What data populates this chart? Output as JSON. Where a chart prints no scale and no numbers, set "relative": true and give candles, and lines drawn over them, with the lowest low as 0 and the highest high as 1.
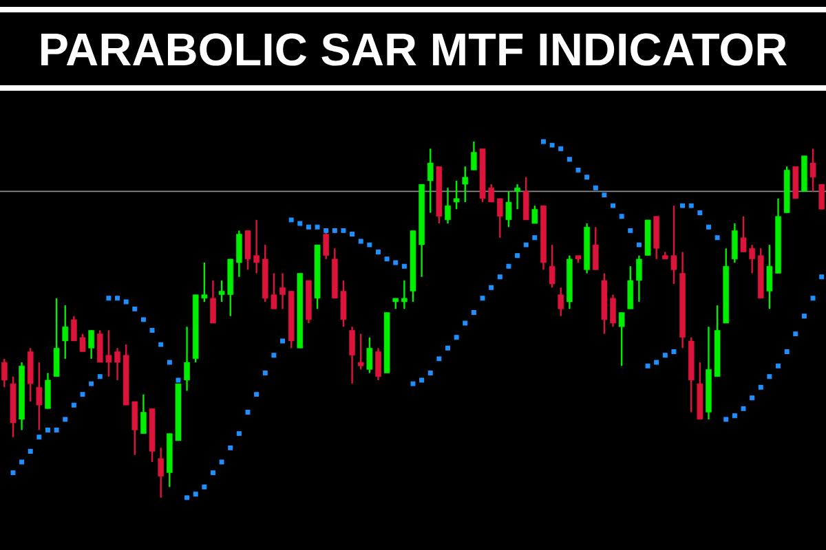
{
  "chart_data": {
    "type": "candlestick",
    "title": "PARABOLIC SAR MTF INDICATOR",
    "relative": true,
    "categories": [
      null,
      null,
      null,
      null,
      null,
      null,
      null,
      null,
      null,
      null,
      null,
      null,
      null,
      null,
      null,
      null,
      null,
      null,
      null,
      null,
      null,
      null,
      null,
      null,
      null,
      null,
      null,
      null,
      null,
      null,
      null,
      null,
      null,
      null,
      null,
      null,
      null,
      null,
      null,
      null,
      null,
      null,
      null,
      null,
      null,
      null,
      null,
      null,
      null,
      null,
      null,
      null,
      null,
      null,
      null,
      null,
      null,
      null,
      null,
      null,
      null,
      null,
      null,
      null,
      null,
      null,
      null,
      null,
      null,
      null,
      null,
      null,
      null,
      null,
      null,
      null,
      null,
      null,
      null,
      null,
      null,
      null,
      null,
      null,
      null,
      null,
      null,
      null,
      null,
      null,
      null,
      null,
      null,
      null,
      null
    ],
    "ohlc": [
      [
        0.38,
        0.39,
        0.31,
        0.33
      ],
      [
        0.32,
        0.34,
        0.17,
        0.21
      ],
      [
        0.22,
        0.38,
        0.19,
        0.37
      ],
      [
        0.41,
        0.42,
        0.27,
        0.32
      ],
      [
        0.31,
        0.38,
        0.19,
        0.26
      ],
      [
        0.25,
        0.35,
        0.25,
        0.33
      ],
      [
        0.34,
        0.56,
        0.34,
        0.42
      ],
      [
        0.44,
        0.54,
        0.39,
        0.48
      ],
      [
        0.5,
        0.51,
        0.44,
        0.44
      ],
      [
        0.45,
        0.46,
        0.41,
        0.41
      ],
      [
        0.42,
        0.47,
        0.39,
        0.47
      ],
      [
        0.46,
        0.47,
        0.38,
        0.38
      ],
      [
        0.4,
        0.47,
        0.34,
        0.38
      ],
      [
        0.41,
        0.42,
        0.33,
        0.38
      ],
      [
        0.4,
        0.43,
        0.26,
        0.26
      ],
      [
        0.27,
        0.27,
        0.12,
        0.19
      ],
      [
        0.18,
        0.29,
        0.18,
        0.24
      ],
      [
        0.25,
        0.25,
        0.1,
        0.13
      ],
      [
        0.11,
        0.14,
        0,
        0.06
      ],
      [
        0.07,
        0.18,
        0.03,
        0.18
      ],
      [
        0.16,
        0.32,
        0.16,
        0.32
      ],
      [
        0.33,
        0.48,
        0.3,
        0.38
      ],
      [
        0.39,
        0.57,
        0.38,
        0.57
      ],
      [
        0.56,
        0.66,
        0.55,
        0.57
      ],
      [
        0.56,
        0.61,
        0.49,
        0.49
      ],
      [
        0.57,
        0.61,
        0.55,
        0.58
      ],
      [
        0.57,
        0.67,
        0.51,
        0.67
      ],
      [
        0.66,
        0.75,
        0.62,
        0.74
      ],
      [
        0.75,
        0.75,
        0.64,
        0.67
      ],
      [
        0.68,
        0.78,
        0.63,
        0.66
      ],
      [
        0.67,
        0.71,
        0.55,
        0.56
      ],
      [
        0.57,
        0.63,
        0.53,
        0.53
      ],
      [
        0.59,
        0.63,
        0.53,
        0.57
      ],
      [
        0.58,
        0.58,
        0.42,
        0.44
      ],
      [
        0.42,
        0.63,
        0.42,
        0.63
      ],
      [
        0.61,
        0.61,
        0.49,
        0.5
      ],
      [
        0.56,
        0.71,
        0.53,
        0.71
      ],
      [
        0.74,
        0.75,
        0.67,
        0.68
      ],
      [
        0.67,
        0.7,
        0.56,
        0.56
      ],
      [
        0.58,
        0.61,
        0.48,
        0.5
      ],
      [
        0.47,
        0.48,
        0.32,
        0.4
      ],
      [
        0.38,
        0.46,
        0.36,
        0.37
      ],
      [
        0.36,
        0.45,
        0.35,
        0.42
      ],
      [
        0.41,
        0.42,
        0.33,
        0.34
      ],
      [
        0.35,
        0.52,
        0.35,
        0.52
      ],
      [
        0.55,
        0.56,
        0.53,
        0.56
      ],
      [
        0.55,
        0.61,
        0.53,
        0.56
      ],
      [
        0.58,
        0.75,
        0.55,
        0.75
      ],
      [
        0.71,
        0.88,
        0.62,
        0.88
      ],
      [
        0.89,
        0.98,
        0.8,
        0.94
      ],
      [
        0.93,
        0.93,
        0.77,
        0.79
      ],
      [
        0.78,
        0.87,
        0.77,
        0.82
      ],
      [
        0.83,
        0.89,
        0.81,
        0.84
      ],
      [
        0.88,
        0.93,
        0.83,
        0.9
      ],
      [
        0.92,
        1,
        0.92,
        0.97
      ],
      [
        0.98,
        0.98,
        0.83,
        0.84
      ],
      [
        0.87,
        0.88,
        0.83,
        0.83
      ],
      [
        0.84,
        0.84,
        0.73,
        0.79
      ],
      [
        0.78,
        0.86,
        0.76,
        0.83
      ],
      [
        0.86,
        0.88,
        0.81,
        0.87
      ],
      [
        0.86,
        0.9,
        0.78,
        0.78
      ],
      [
        0.77,
        0.82,
        0.77,
        0.81
      ],
      [
        0.82,
        0.82,
        0.64,
        0.66
      ],
      [
        0.65,
        0.71,
        0.59,
        0.6
      ],
      [
        0.57,
        0.59,
        0.51,
        0.53
      ],
      [
        0.55,
        0.68,
        0.53,
        0.67
      ],
      [
        0.68,
        0.68,
        0.66,
        0.67
      ],
      [
        0.64,
        0.77,
        0.63,
        0.76
      ],
      [
        0.71,
        0.76,
        0.64,
        0.64
      ],
      [
        0.61,
        0.63,
        0.46,
        0.5
      ],
      [
        0.56,
        0.57,
        0.48,
        0.49
      ],
      [
        0.48,
        0.52,
        0.37,
        0.52
      ],
      [
        0.53,
        0.65,
        0.53,
        0.61
      ],
      [
        0.61,
        0.68,
        0.55,
        0.67
      ],
      [
        0.68,
        0.78,
        0.68,
        0.78
      ],
      [
        0.79,
        0.79,
        0.67,
        0.7
      ],
      [
        0.68,
        0.69,
        0.67,
        0.67
      ],
      [
        0.68,
        0.82,
        0.6,
        0.64
      ],
      [
        0.63,
        0.69,
        0.42,
        0.45
      ],
      [
        0.44,
        0.45,
        0.24,
        0.33
      ],
      [
        0.32,
        0.38,
        0.22,
        0.22
      ],
      [
        0.24,
        0.48,
        0.22,
        0.36
      ],
      [
        0.34,
        0.54,
        0.34,
        0.47
      ],
      [
        0.49,
        0.7,
        0.49,
        0.65
      ],
      [
        0.67,
        0.77,
        0.66,
        0.75
      ],
      [
        0.73,
        0.79,
        0.69,
        0.69
      ],
      [
        0.7,
        0.71,
        0.63,
        0.67
      ],
      [
        0.68,
        0.7,
        0.56,
        0.56
      ],
      [
        0.58,
        0.71,
        0.53,
        0.65
      ],
      [
        0.63,
        0.84,
        0.63,
        0.79
      ],
      [
        0.8,
        0.93,
        0.8,
        0.92
      ],
      [
        0.93,
        0.93,
        0.84,
        0.84
      ],
      [
        0.86,
        0.96,
        0.86,
        0.96
      ],
      [
        0.94,
        0.98,
        0.86,
        0.9
      ],
      [
        0.88,
        0.88,
        0.81,
        0.81
      ]
    ],
    "colors": [
      "#dc143c",
      "#dc143c",
      "#00ee00",
      "#dc143c",
      "#dc143c",
      "#00ee00",
      "#00ee00",
      "#00ee00",
      "#dc143c",
      "#dc143c",
      "#00ee00",
      "#dc143c",
      "#dc143c",
      "#dc143c",
      "#dc143c",
      "#dc143c",
      "#00ee00",
      "#dc143c",
      "#dc143c",
      "#00ee00",
      "#00ee00",
      "#00ee00",
      "#00ee00",
      "#00ee00",
      "#dc143c",
      "#00ee00",
      "#00ee00",
      "#00ee00",
      "#dc143c",
      "#dc143c",
      "#dc143c",
      "#dc143c",
      "#dc143c",
      "#dc143c",
      "#00ee00",
      "#dc143c",
      "#00ee00",
      "#dc143c",
      "#dc143c",
      "#dc143c",
      "#dc143c",
      "#dc143c",
      "#00ee00",
      "#dc143c",
      "#00ee00",
      "#00ee00",
      "#00ee00",
      "#00ee00",
      "#00ee00",
      "#00ee00",
      "#dc143c",
      "#00ee00",
      "#00ee00",
      "#00ee00",
      "#00ee00",
      "#dc143c",
      "#dc143c",
      "#dc143c",
      "#00ee00",
      "#00ee00",
      "#dc143c",
      "#00ee00",
      "#dc143c",
      "#dc143c",
      "#dc143c",
      "#00ee00",
      "#dc143c",
      "#00ee00",
      "#dc143c",
      "#dc143c",
      "#dc143c",
      "#00ee00",
      "#00ee00",
      "#00ee00",
      "#00ee00",
      "#dc143c",
      "#dc143c",
      "#dc143c",
      "#dc143c",
      "#dc143c",
      "#dc143c",
      "#00ee00",
      "#00ee00",
      "#00ee00",
      "#00ee00",
      "#dc143c",
      "#dc143c",
      "#dc143c",
      "#00ee00",
      "#00ee00",
      "#00ee00",
      "#dc143c",
      "#00ee00",
      "#dc143c",
      "#dc143c"
    ],
    "series": [
      {
        "type": "scatter",
        "color": "#1e90ff",
        "values": [
          null,
          0.07,
          0.1,
          0.13,
          0.17,
          0.19,
          0.19,
          0.22,
          0.26,
          0.29,
          0.32,
          0.34,
          0.56,
          0.56,
          0.55,
          0.53,
          0.5,
          0.47,
          0.43,
          0.38,
          0.33,
          0,
          0.01,
          0.03,
          0.07,
          0.1,
          0.14,
          0.18,
          0.24,
          0.29,
          0.35,
          0.4,
          0.44,
          0.78,
          0.77,
          0.76,
          0.76,
          0.75,
          0.75,
          0.75,
          0.74,
          0.72,
          0.71,
          0.69,
          0.67,
          0.66,
          0.65,
          0.32,
          0.33,
          0.35,
          0.39,
          0.42,
          0.45,
          0.49,
          0.52,
          0.56,
          0.59,
          0.62,
          0.65,
          0.68,
          0.71,
          0.73,
          1.0,
          0.99,
          0.98,
          0.95,
          0.92,
          0.9,
          0.87,
          0.85,
          0.82,
          0.79,
          0.75,
          0.71,
          0.37,
          0.38,
          0.4,
          0.41,
          0.82,
          0.82,
          0.8,
          0.76,
          0.73,
          0.22,
          0.23,
          0.25,
          0.28,
          0.31,
          0.34,
          0.37,
          0.41,
          0.46,
          0.51,
          0.56,
          0.62
        ]
      }
    ],
    "marker": "square",
    "ref_lines": [
      {
        "axis": "y",
        "value": 0.86,
        "color": "#8c8c8c"
      }
    ]
  }
}
